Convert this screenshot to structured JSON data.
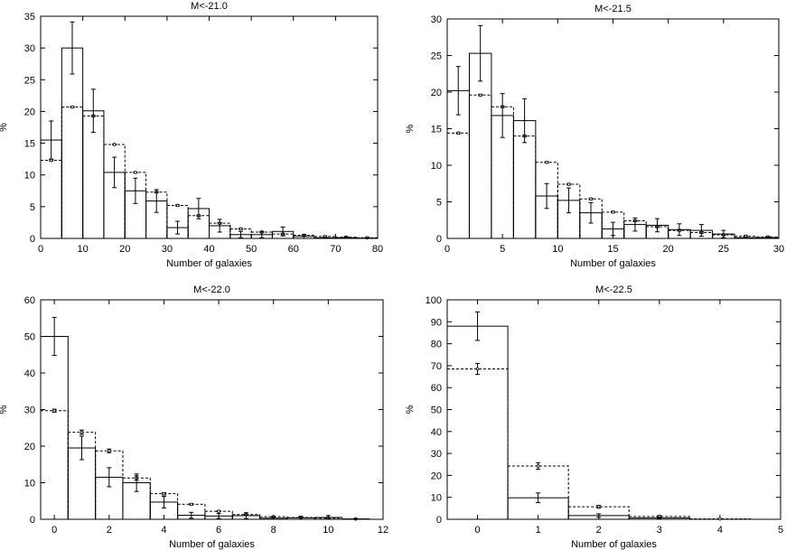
{
  "chart_data": [
    {
      "type": "bar",
      "title": "M<-21.0",
      "xlabel": "Number of galaxies",
      "ylabel": "%",
      "xlim": [
        0,
        80
      ],
      "ylim": [
        0,
        35
      ],
      "xticks": [
        0,
        10,
        20,
        30,
        40,
        50,
        60,
        70,
        80
      ],
      "yticks": [
        0,
        5,
        10,
        15,
        20,
        25,
        30,
        35
      ],
      "bin_edges": [
        0,
        5,
        10,
        15,
        20,
        25,
        30,
        35,
        40,
        45,
        50,
        55,
        60,
        65,
        70,
        75,
        80
      ],
      "series": [
        {
          "style": "solid",
          "values": [
            15.5,
            30.0,
            20.1,
            10.4,
            7.5,
            5.9,
            1.7,
            4.7,
            2.0,
            0.6,
            0.6,
            1.1,
            0.3,
            0.1,
            0.1,
            0.05
          ],
          "errors": [
            3.0,
            4.1,
            3.4,
            2.4,
            2.0,
            1.8,
            1.0,
            1.6,
            1.0,
            0.5,
            0.5,
            0.7,
            0.3,
            0.1,
            0.1,
            0.05
          ]
        },
        {
          "style": "dashed",
          "values": [
            12.3,
            20.7,
            19.3,
            14.8,
            10.4,
            7.3,
            5.2,
            3.6,
            2.4,
            1.5,
            1.0,
            0.7,
            0.5,
            0.3,
            0.2,
            0.1
          ],
          "errors": [
            0.1,
            0.1,
            0.1,
            0.1,
            0.1,
            0.1,
            0.1,
            0.1,
            0.1,
            0.1,
            0.1,
            0.1,
            0.1,
            0.1,
            0.1,
            0.1
          ]
        }
      ]
    },
    {
      "type": "bar",
      "title": "M<-21.5",
      "xlabel": "Number of galaxies",
      "ylabel": "%",
      "xlim": [
        0,
        30
      ],
      "ylim": [
        0,
        30
      ],
      "xticks": [
        0,
        5,
        10,
        15,
        20,
        25,
        30
      ],
      "yticks": [
        0,
        5,
        10,
        15,
        20,
        25,
        30
      ],
      "bin_edges": [
        0,
        2,
        4,
        6,
        8,
        10,
        12,
        14,
        16,
        18,
        20,
        22,
        24,
        26,
        28,
        30
      ],
      "series": [
        {
          "style": "solid",
          "values": [
            20.2,
            25.3,
            16.8,
            16.1,
            5.8,
            5.2,
            3.5,
            1.3,
            1.9,
            1.8,
            1.2,
            1.1,
            0.6,
            0.1,
            0.1
          ],
          "errors": [
            3.3,
            3.8,
            3.0,
            3.0,
            1.7,
            1.7,
            1.4,
            0.9,
            0.9,
            0.9,
            0.8,
            0.8,
            0.5,
            0.1,
            0.1
          ]
        },
        {
          "style": "dashed",
          "values": [
            14.4,
            19.6,
            18.0,
            14.0,
            10.4,
            7.4,
            5.4,
            3.6,
            2.4,
            1.6,
            1.1,
            0.8,
            0.5,
            0.3,
            0.2
          ],
          "errors": [
            0.1,
            0.1,
            0.1,
            0.1,
            0.1,
            0.1,
            0.1,
            0.1,
            0.1,
            0.1,
            0.1,
            0.1,
            0.1,
            0.1,
            0.1
          ]
        }
      ]
    },
    {
      "type": "bar",
      "title": "M<-22.0",
      "xlabel": "Number of galaxies",
      "ylabel": "%",
      "xlim": [
        -0.5,
        12
      ],
      "ylim": [
        0,
        60
      ],
      "xticks": [
        0,
        2,
        4,
        6,
        8,
        10,
        12
      ],
      "yticks": [
        0,
        10,
        20,
        30,
        40,
        50,
        60
      ],
      "bin_edges": [
        -0.5,
        0.5,
        1.5,
        2.5,
        3.5,
        4.5,
        5.5,
        6.5,
        7.5,
        8.5,
        9.5,
        10.5,
        11.5
      ],
      "series": [
        {
          "style": "solid",
          "values": [
            50.0,
            19.5,
            11.5,
            10.0,
            4.7,
            1.1,
            0.9,
            1.0,
            0.3,
            0.4,
            0.5,
            0.1
          ],
          "errors": [
            5.2,
            3.2,
            2.6,
            2.4,
            1.6,
            0.8,
            0.7,
            0.8,
            0.4,
            0.4,
            0.5,
            0.1
          ]
        },
        {
          "style": "dashed",
          "values": [
            29.7,
            23.8,
            18.7,
            11.3,
            7.0,
            4.1,
            2.2,
            1.3,
            0.7,
            0.5,
            0.3,
            0.1
          ],
          "errors": [
            0.4,
            0.6,
            0.5,
            0.6,
            0.3,
            0.2,
            0.1,
            0.1,
            0.1,
            0.1,
            0.1,
            0.05
          ]
        }
      ]
    },
    {
      "type": "bar",
      "title": "M<-22.5",
      "xlabel": "Number of galaxies",
      "ylabel": "%",
      "xlim": [
        -0.5,
        5
      ],
      "ylim": [
        0,
        100
      ],
      "xticks": [
        0,
        1,
        2,
        3,
        4,
        5
      ],
      "yticks": [
        0,
        10,
        20,
        30,
        40,
        50,
        60,
        70,
        80,
        90,
        100
      ],
      "bin_edges": [
        -0.5,
        0.5,
        1.5,
        2.5,
        3.5,
        4.5
      ],
      "series": [
        {
          "style": "solid",
          "values": [
            88.0,
            9.8,
            1.7,
            0.6,
            0.0
          ],
          "errors": [
            6.5,
            2.2,
            0.8,
            0.4,
            0.0
          ]
        },
        {
          "style": "dashed",
          "values": [
            68.5,
            24.3,
            5.7,
            1.3,
            0.2
          ],
          "errors": [
            2.5,
            1.5,
            0.6,
            0.4,
            0.1
          ]
        }
      ]
    }
  ]
}
